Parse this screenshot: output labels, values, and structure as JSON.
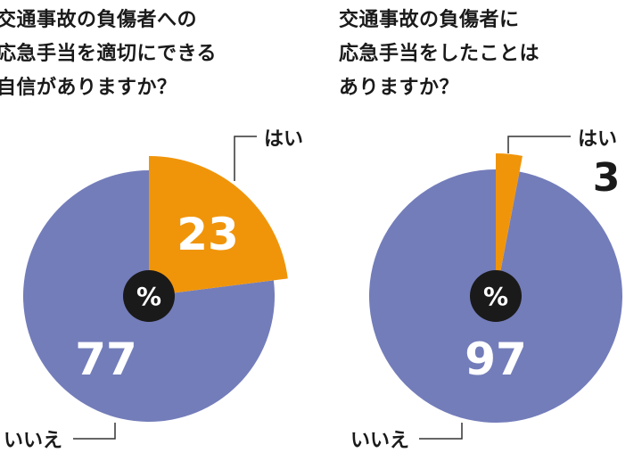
{
  "chart_data": [
    {
      "type": "pie",
      "title_lines": [
        "交通事故の負傷者への",
        "応急手当を適切にできる",
        "自信がありますか？"
      ],
      "unit": "%",
      "slices": [
        {
          "label": "はい",
          "value": 23,
          "color": "#f0950a",
          "exploded": true
        },
        {
          "label": "いいえ",
          "value": 77,
          "color": "#737dba",
          "exploded": false
        }
      ]
    },
    {
      "type": "pie",
      "title_lines": [
        "交通事故の負傷者に",
        "応急手当をしたことは",
        "ありますか？"
      ],
      "unit": "%",
      "slices": [
        {
          "label": "はい",
          "value": 3,
          "color": "#f0950a",
          "exploded": true
        },
        {
          "label": "いいえ",
          "value": 97,
          "color": "#737dba",
          "exploded": false
        }
      ]
    }
  ]
}
